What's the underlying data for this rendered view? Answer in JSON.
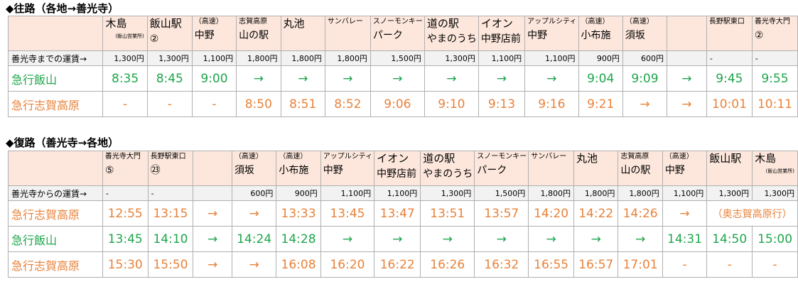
{
  "colors": {
    "green": "#1ea64b",
    "orange": "#e8823a",
    "header_bg": "#fde7dc",
    "fare_bg": "#f2f2f2"
  },
  "outbound": {
    "title": "◆往路（各地→善光寺）",
    "stops": [
      {
        "l1": "木島",
        "l2": "(飯山営業所)",
        "l1_big": true,
        "l2_tiny": true
      },
      {
        "l1": "飯山駅",
        "l2": "②",
        "l1_big": true
      },
      {
        "l1": "（高速）",
        "l2": "中野"
      },
      {
        "l1": "志賀高原",
        "l2": "山の駅"
      },
      {
        "l1": "丸池",
        "l2": "",
        "l1_big": true
      },
      {
        "l1": "サンバレー",
        "l2": ""
      },
      {
        "l1": "スノーモンキー",
        "l2": "パーク"
      },
      {
        "l1": "道の駅",
        "l2": "やまのうち",
        "l1_big": true
      },
      {
        "l1": "イオン",
        "l2": "中野店前",
        "l1_big": true
      },
      {
        "l1": "アップルシティ",
        "l2": "中野"
      },
      {
        "l1": "（高速）",
        "l2": "小布施"
      },
      {
        "l1": "（高速）",
        "l2": "須坂"
      },
      {
        "l1": "",
        "l2": ""
      },
      {
        "l1": "長野駅東口",
        "l2": ""
      },
      {
        "l1": "善光寺大門",
        "l2": "②"
      }
    ],
    "fare_label": "善光寺までの運賃→",
    "fares": [
      "1,300円",
      "1,300円",
      "1,100円",
      "1,800円",
      "1,800円",
      "1,800円",
      "1,500円",
      "1,300円",
      "1,100円",
      "1,100円",
      "900円",
      "600円",
      "",
      "-",
      "-"
    ],
    "rows": [
      {
        "label": "急行飯山",
        "color": "green",
        "times": [
          "8:35",
          "8:45",
          "9:00",
          "→",
          "→",
          "→",
          "→",
          "→",
          "→",
          "→",
          "9:04",
          "9:09",
          "→",
          "9:45",
          "9:55"
        ]
      },
      {
        "label": "急行志賀高原",
        "color": "orange",
        "times": [
          "-",
          "-",
          "-",
          "8:50",
          "8:51",
          "8:52",
          "9:06",
          "9:10",
          "9:13",
          "9:16",
          "9:21",
          "→",
          "→",
          "10:01",
          "10:11"
        ]
      }
    ]
  },
  "return": {
    "title": "◆復路（善光寺→各地）",
    "stops": [
      {
        "l1": "善光寺大門",
        "l2": "⑤"
      },
      {
        "l1": "長野駅東口",
        "l2": "㉓"
      },
      {
        "l1": "",
        "l2": ""
      },
      {
        "l1": "（高速）",
        "l2": "須坂"
      },
      {
        "l1": "（高速）",
        "l2": "小布施"
      },
      {
        "l1": "アップルシティ",
        "l2": "中野"
      },
      {
        "l1": "イオン",
        "l2": "中野店前",
        "l1_big": true
      },
      {
        "l1": "道の駅",
        "l2": "やまのうち",
        "l1_big": true
      },
      {
        "l1": "スノーモンキー",
        "l2": "パーク"
      },
      {
        "l1": "サンバレー",
        "l2": ""
      },
      {
        "l1": "丸池",
        "l2": "",
        "l1_big": true
      },
      {
        "l1": "志賀高原",
        "l2": "山の駅"
      },
      {
        "l1": "（高速）",
        "l2": "中野"
      },
      {
        "l1": "飯山駅",
        "l2": "",
        "l1_big": true
      },
      {
        "l1": "木島",
        "l2": "(飯山営業所)",
        "l1_big": true,
        "l2_tiny": true
      }
    ],
    "fare_label": "善光寺からの運賃→",
    "fares": [
      "-",
      "-",
      "",
      "600円",
      "900円",
      "1,100円",
      "1,100円",
      "1,300円",
      "1,500円",
      "1,800円",
      "1,800円",
      "1,800円",
      "1,100円",
      "1,300円",
      "1,300円"
    ],
    "rows": [
      {
        "label": "急行志賀高原",
        "color": "orange",
        "times": [
          "12:55",
          "13:15",
          "→",
          "→",
          "13:33",
          "13:45",
          "13:47",
          "13:51",
          "13:57",
          "14:20",
          "14:22",
          "14:26",
          "→",
          "（奥志賀高原行）",
          ""
        ]
      },
      {
        "label": "急行飯山",
        "color": "green",
        "times": [
          "13:45",
          "14:10",
          "→",
          "14:24",
          "14:28",
          "→",
          "→",
          "→",
          "→",
          "→",
          "→",
          "→",
          "14:31",
          "14:50",
          "15:00"
        ]
      },
      {
        "label": "急行志賀高原",
        "color": "orange",
        "times": [
          "15:30",
          "15:50",
          "→",
          "→",
          "16:08",
          "16:20",
          "16:22",
          "16:26",
          "16:32",
          "16:55",
          "16:57",
          "17:01",
          "-",
          "-",
          "-"
        ]
      }
    ]
  }
}
